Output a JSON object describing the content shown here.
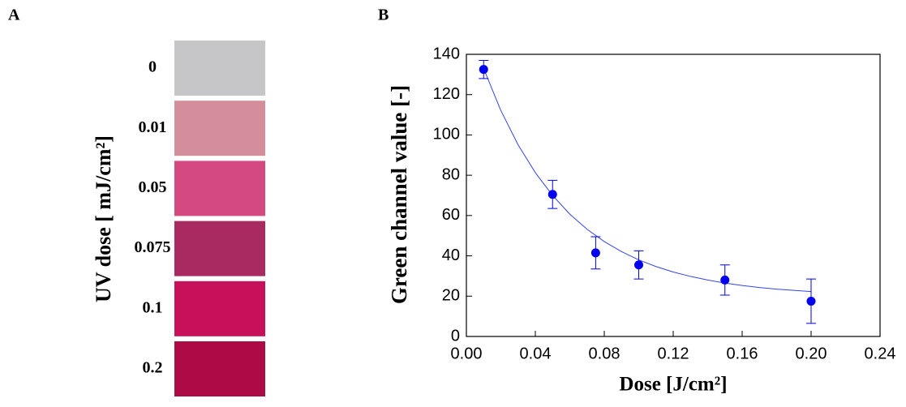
{
  "chart_data": [
    {
      "type": "swatch",
      "panel_label": "A",
      "y_label": "UV dose [ mJ/cm²]",
      "categories": [
        "0",
        "0.01",
        "0.05",
        "0.075",
        "0.1",
        "0.2"
      ],
      "colors": [
        "#c6c6c8",
        "#d48d9b",
        "#d44a80",
        "#a82a60",
        "#c6115a",
        "#ad0b45"
      ]
    },
    {
      "type": "scatter",
      "panel_label": "B",
      "x_label": "Dose [J/cm²]",
      "y_label": "Green channel value [-]",
      "x": [
        0.01,
        0.05,
        0.075,
        0.1,
        0.15,
        0.2
      ],
      "values": [
        132.5,
        70.5,
        41.5,
        35.5,
        28,
        17.5
      ],
      "errors": [
        4.5,
        7,
        8,
        7,
        7.5,
        11
      ],
      "color": "#0000ee",
      "fit": {
        "x": [
          0.01,
          0.02,
          0.03,
          0.04,
          0.05,
          0.06,
          0.07,
          0.08,
          0.09,
          0.1,
          0.11,
          0.12,
          0.13,
          0.14,
          0.15,
          0.16,
          0.17,
          0.18,
          0.19,
          0.2
        ],
        "values": [
          133,
          112.1,
          95.1,
          81.3,
          70,
          60.7,
          53.2,
          47.1,
          42.1,
          38,
          34.7,
          32,
          29.8,
          28,
          26.5,
          25.3,
          24.3,
          23.5,
          22.9,
          22.3
        ],
        "color": "#3344ee"
      },
      "xlim": [
        0,
        0.24
      ],
      "xticks": [
        {
          "value": 0,
          "label": "0.00"
        },
        {
          "value": 0.04,
          "label": "0.04"
        },
        {
          "value": 0.08,
          "label": "0.08"
        },
        {
          "value": 0.12,
          "label": "0.12"
        },
        {
          "value": 0.16,
          "label": "0.16"
        },
        {
          "value": 0.2,
          "label": "0.20"
        },
        {
          "value": 0.24,
          "label": "0.24"
        }
      ],
      "ylim": [
        0,
        140
      ],
      "yticks": [
        0,
        20,
        40,
        60,
        80,
        100,
        120,
        140
      ]
    }
  ]
}
